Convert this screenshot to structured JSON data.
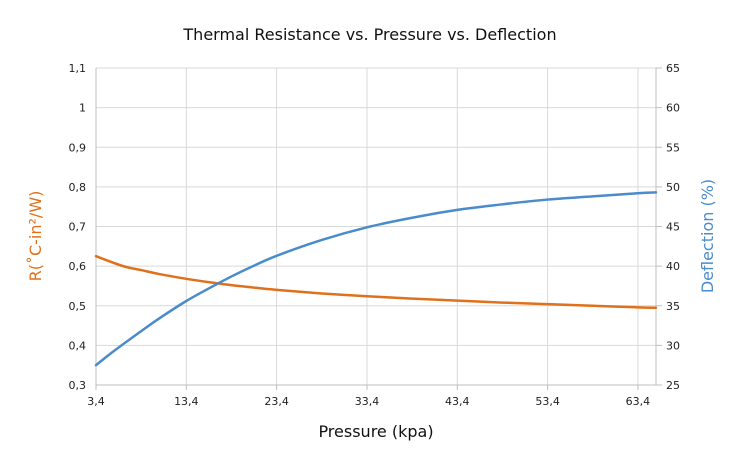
{
  "chart_data": {
    "type": "line",
    "title": "Thermal Resistance vs. Pressure vs. Deflection",
    "xlabel": "Pressure (kpa)",
    "ylabel_left": "R(˚C-in²/W)",
    "ylabel_right": "Deflection (%)",
    "xlim": [
      3.4,
      65.4
    ],
    "ylim_left": [
      0.3,
      1.1
    ],
    "ylim_right": [
      25,
      65
    ],
    "x_ticks": [
      3.4,
      13.4,
      23.4,
      33.4,
      43.4,
      53.4,
      63.4
    ],
    "x_tick_labels": [
      "3,4",
      "13,4",
      "23,4",
      "33,4",
      "43,4",
      "53,4",
      "63,4"
    ],
    "y_left_ticks": [
      0.3,
      0.4,
      0.5,
      0.6,
      0.7,
      0.8,
      0.9,
      1.0,
      1.1
    ],
    "y_left_tick_labels": [
      "0,3",
      "0,4",
      "0,5",
      "0,6",
      "0,7",
      "0,8",
      "0,9",
      "1",
      "1,1"
    ],
    "y_right_ticks": [
      25,
      30,
      35,
      40,
      45,
      50,
      55,
      60,
      65
    ],
    "y_right_tick_labels": [
      "25",
      "30",
      "35",
      "40",
      "45",
      "50",
      "55",
      "60",
      "65"
    ],
    "grid": true,
    "colors": {
      "resistance": "#E0711C",
      "deflection": "#4A8CCB",
      "grid": "#D9D9D9"
    },
    "series": [
      {
        "axis": "left",
        "x": [
          3.4,
          6.4,
          8.4,
          10.4,
          13.4,
          16.4,
          18.4,
          20.4,
          23.4,
          28.4,
          33.4,
          38.4,
          43.4,
          48.4,
          53.4,
          58.4,
          63.4,
          65.4
        ],
        "values": [
          0.625,
          0.6,
          0.59,
          0.58,
          0.568,
          0.558,
          0.552,
          0.547,
          0.54,
          0.531,
          0.524,
          0.518,
          0.513,
          0.508,
          0.504,
          0.5,
          0.496,
          0.495
        ]
      },
      {
        "axis": "right",
        "x": [
          3.4,
          5.4,
          8.4,
          10.4,
          13.4,
          16.4,
          18.4,
          20.4,
          23.4,
          28.4,
          33.4,
          38.4,
          43.4,
          48.4,
          53.4,
          58.4,
          63.4,
          65.4
        ],
        "values": [
          27.5,
          29.3,
          31.8,
          33.4,
          35.6,
          37.5,
          38.7,
          39.8,
          41.3,
          43.3,
          44.9,
          46.1,
          47.1,
          47.8,
          48.4,
          48.8,
          49.2,
          49.3
        ]
      }
    ]
  }
}
